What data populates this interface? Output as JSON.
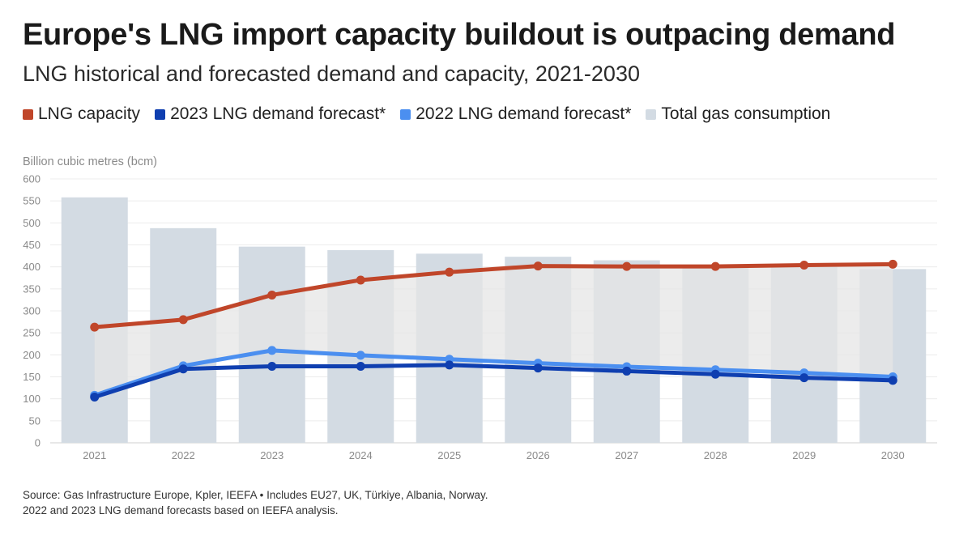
{
  "title": "Europe's LNG import capacity buildout is outpacing demand",
  "subtitle": "LNG historical and forecasted demand and capacity, 2021-2030",
  "legend": [
    {
      "label": "LNG capacity",
      "color": "#c0462a"
    },
    {
      "label": "2023 LNG demand forecast*",
      "color": "#0f3fb0"
    },
    {
      "label": "2022 LNG demand forecast*",
      "color": "#4b8ff0"
    },
    {
      "label": "Total gas consumption",
      "color": "#d3dbe3"
    }
  ],
  "footer": {
    "line1": "Source: Gas Infrastructure Europe, Kpler, IEEFA • Includes EU27, UK, Türkiye, Albania, Norway.",
    "line2": "2022 and 2023 LNG demand forecasts based on IEEFA analysis."
  },
  "chart_data": {
    "type": "bar",
    "ylabel": "Billion cubic metres (bcm)",
    "ylim": [
      0,
      600
    ],
    "yticks": [
      0,
      50,
      100,
      150,
      200,
      250,
      300,
      350,
      400,
      450,
      500,
      550,
      600
    ],
    "categories": [
      "2021",
      "2022",
      "2023",
      "2024",
      "2025",
      "2026",
      "2027",
      "2028",
      "2029",
      "2030"
    ],
    "grid": true,
    "legend_position": "top",
    "bars": {
      "name": "Total gas consumption",
      "color": "#d3dbe3",
      "values": [
        558,
        488,
        446,
        438,
        430,
        423,
        415,
        405,
        400,
        395
      ]
    },
    "series": [
      {
        "name": "LNG capacity",
        "type": "line",
        "color": "#c0462a",
        "values": [
          263,
          280,
          336,
          370,
          388,
          402,
          401,
          401,
          404,
          406
        ]
      },
      {
        "name": "2022 LNG demand forecast*",
        "type": "line",
        "color": "#4b8ff0",
        "values": [
          108,
          175,
          210,
          199,
          190,
          181,
          173,
          166,
          159,
          150
        ]
      },
      {
        "name": "2023 LNG demand forecast*",
        "type": "line",
        "color": "#0f3fb0",
        "values": [
          104,
          168,
          174,
          174,
          177,
          170,
          163,
          156,
          148,
          142
        ]
      }
    ],
    "shaded_area": {
      "between": [
        "LNG capacity",
        "2022 LNG demand forecast*"
      ],
      "color": "#e6e6e6"
    }
  }
}
